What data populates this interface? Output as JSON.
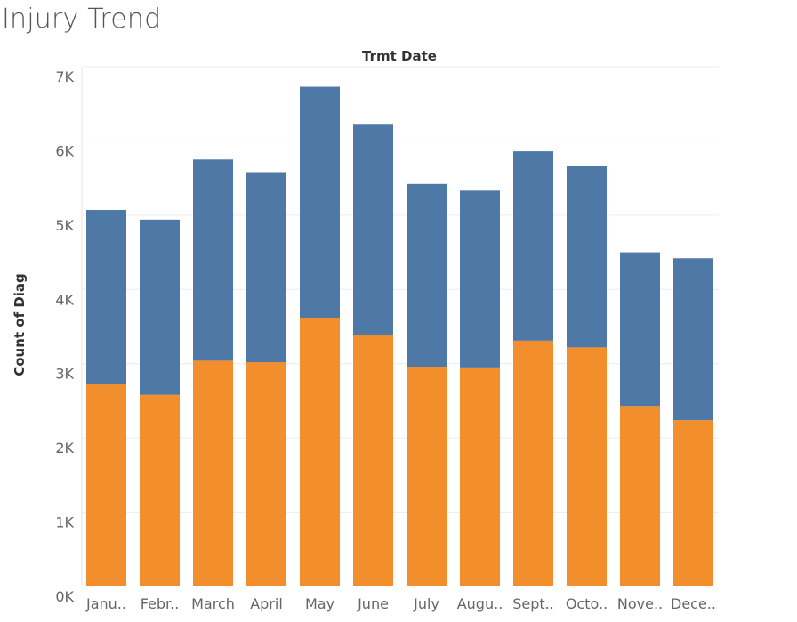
{
  "page": {
    "title": "Injury Trend"
  },
  "chart_data": {
    "type": "bar",
    "stacked": true,
    "title": "",
    "xlabel": "Trmt Date",
    "ylabel": "Count of Diag",
    "ylim": [
      0,
      7000
    ],
    "yticks": [
      0,
      1000,
      2000,
      3000,
      4000,
      5000,
      6000,
      7000
    ],
    "ytick_labels": [
      "0K",
      "1K",
      "2K",
      "3K",
      "4K",
      "5K",
      "6K",
      "7K"
    ],
    "categories": [
      "January",
      "February",
      "March",
      "April",
      "May",
      "June",
      "July",
      "August",
      "September",
      "October",
      "November",
      "December"
    ],
    "category_labels": [
      "Janu..",
      "Febr..",
      "March",
      "April",
      "May",
      "June",
      "July",
      "Augu..",
      "Sept..",
      "Octo..",
      "Nove..",
      "Dece.."
    ],
    "grid": true,
    "legend": "none",
    "series": [
      {
        "color": "#f28e2b",
        "values": [
          2720,
          2580,
          3040,
          3020,
          3620,
          3380,
          2960,
          2950,
          3310,
          3220,
          2430,
          2240
        ]
      },
      {
        "color": "#4e79a7",
        "values": [
          2350,
          2360,
          2710,
          2560,
          3110,
          2850,
          2460,
          2380,
          2550,
          2440,
          2070,
          2180
        ]
      }
    ]
  }
}
